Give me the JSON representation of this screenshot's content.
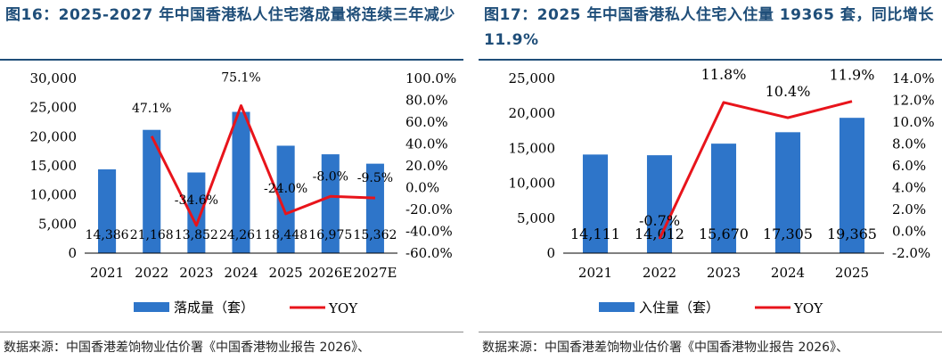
{
  "figures": [
    {
      "title": "图16：2025-2027 年中国香港私人住宅落成量将连续三年减少",
      "source": "数据来源：中国香港差饷物业估价署《中国香港物业报告 2026》、"
    },
    {
      "title": "图17：2025 年中国香港私人住宅入住量 19365 套，同比增长 11.9%",
      "source": "数据来源：中国香港差饷物业估价署《中国香港物业报告 2026》、"
    }
  ],
  "chart_data": [
    {
      "type": "bar",
      "categories": [
        "2021",
        "2022",
        "2023",
        "2024",
        "2025",
        "2026E",
        "2027E"
      ],
      "series": [
        {
          "name": "落成量（套）",
          "type": "bar",
          "axis": "left",
          "values": [
            14386,
            21168,
            13852,
            24261,
            18448,
            16975,
            15362
          ],
          "labels": [
            "14,386",
            "21,168",
            "13,852",
            "24,261",
            "18,448",
            "16,975",
            "15,362"
          ]
        },
        {
          "name": "YOY",
          "type": "line",
          "axis": "right",
          "values": [
            null,
            47.1,
            -34.6,
            75.1,
            -24.0,
            -8.0,
            -9.5
          ],
          "labels": [
            "",
            "47.1%",
            "-34.6%",
            "75.1%",
            "-24.0%",
            "-8.0%",
            "-9.5%"
          ]
        }
      ],
      "y_left": {
        "range": [
          0,
          30000
        ],
        "ticks": [
          "0",
          "5,000",
          "10,000",
          "15,000",
          "20,000",
          "25,000",
          "30,000"
        ]
      },
      "y_right": {
        "range": [
          -60,
          100
        ],
        "ticks": [
          "-60.0%",
          "-40.0%",
          "-20.0%",
          "0.0%",
          "20.0%",
          "40.0%",
          "60.0%",
          "80.0%",
          "100.0%"
        ]
      },
      "colors": {
        "bar": "#2E75C9",
        "line": "#E8141B"
      },
      "legend": "bottom",
      "grid": false
    },
    {
      "type": "bar",
      "categories": [
        "2021",
        "2022",
        "2023",
        "2024",
        "2025"
      ],
      "series": [
        {
          "name": "入住量（套）",
          "type": "bar",
          "axis": "left",
          "values": [
            14111,
            14012,
            15670,
            17305,
            19365
          ],
          "labels": [
            "14,111",
            "14,012",
            "15,670",
            "17,305",
            "19,365"
          ]
        },
        {
          "name": "YOY",
          "type": "line",
          "axis": "right",
          "values": [
            null,
            -0.7,
            11.8,
            10.4,
            11.9
          ],
          "labels": [
            "",
            "-0.7%",
            "11.8%",
            "10.4%",
            "11.9%"
          ]
        }
      ],
      "y_left": {
        "range": [
          0,
          25000
        ],
        "ticks": [
          "0",
          "5,000",
          "10,000",
          "15,000",
          "20,000",
          "25,000"
        ]
      },
      "y_right": {
        "range": [
          -2,
          14
        ],
        "ticks": [
          "-2.0%",
          "0.0%",
          "2.0%",
          "4.0%",
          "6.0%",
          "8.0%",
          "10.0%",
          "12.0%",
          "14.0%"
        ]
      },
      "colors": {
        "bar": "#2E75C9",
        "line": "#E8141B"
      },
      "legend": "bottom",
      "grid": false
    }
  ]
}
